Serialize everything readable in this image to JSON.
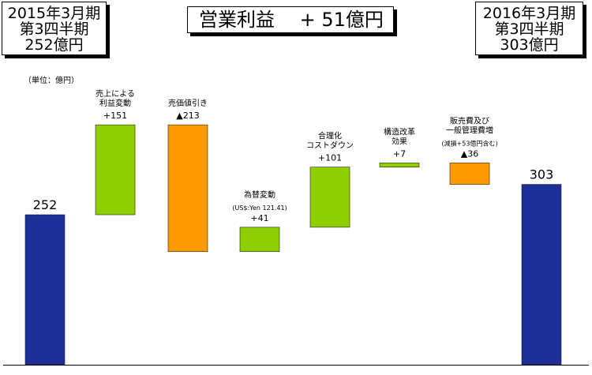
{
  "header": {
    "left_lines": [
      "2015年3月期",
      "第3四半期",
      "252億円"
    ],
    "right_lines": [
      "2016年3月期",
      "第3四半期",
      "303億円"
    ],
    "title": "営業利益　 + 51億円"
  },
  "unit_label": "（単位：億円）",
  "colors": {
    "total": "#1c2e98",
    "increase": "#8fce00",
    "decrease": "#ff9900"
  },
  "chart_data": {
    "type": "bar",
    "subtype": "waterfall",
    "ylim": [
      0,
      380
    ],
    "grid": false,
    "steps": [
      {
        "name_lines": [],
        "sub": "",
        "value": 252,
        "label": "252",
        "kind": "total"
      },
      {
        "name_lines": [
          "売上による",
          "利益変動"
        ],
        "sub": "",
        "value": 151,
        "label": "+151",
        "kind": "increase"
      },
      {
        "name_lines": [
          "売価値引き"
        ],
        "sub": "",
        "value": -213,
        "label": "▲213",
        "kind": "decrease"
      },
      {
        "name_lines": [
          "為替変動"
        ],
        "sub": "(US$:Yen 121.41)",
        "value": 41,
        "label": "+41",
        "kind": "increase"
      },
      {
        "name_lines": [
          "合理化",
          "コストダウン"
        ],
        "sub": "",
        "value": 101,
        "label": "+101",
        "kind": "increase"
      },
      {
        "name_lines": [
          "構造改革",
          "効果"
        ],
        "sub": "",
        "value": 7,
        "label": "+7",
        "kind": "increase"
      },
      {
        "name_lines": [
          "販売費及び",
          "一般管理費増"
        ],
        "sub": "(減損+53億円含む)",
        "value": -36,
        "label": "▲36",
        "kind": "decrease"
      },
      {
        "name_lines": [],
        "sub": "",
        "value": 303,
        "label": "303",
        "kind": "total"
      }
    ]
  }
}
